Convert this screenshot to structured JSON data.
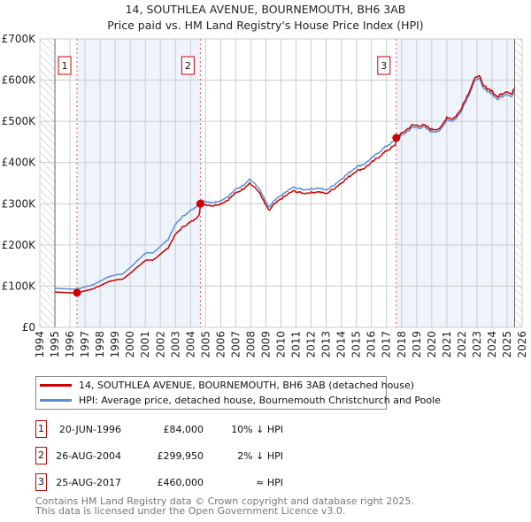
{
  "chart_data": {
    "type": "line",
    "title": "14, SOUTHLEA AVENUE, BOURNEMOUTH, BH6 3AB",
    "subtitle": "Price paid vs. HM Land Registry's House Price Index (HPI)",
    "xlim": [
      1994,
      2026
    ],
    "ylim": [
      0,
      700000
    ],
    "y_ticks": [
      {
        "v": 0,
        "label": "£0"
      },
      {
        "v": 100000,
        "label": "£100K"
      },
      {
        "v": 200000,
        "label": "£200K"
      },
      {
        "v": 300000,
        "label": "£300K"
      },
      {
        "v": 400000,
        "label": "£400K"
      },
      {
        "v": 500000,
        "label": "£500K"
      },
      {
        "v": 600000,
        "label": "£600K"
      },
      {
        "v": 700000,
        "label": "£700K"
      }
    ],
    "x_ticks": [
      "1994",
      "1995",
      "1996",
      "1997",
      "1998",
      "1999",
      "2000",
      "2001",
      "2002",
      "2003",
      "2004",
      "2005",
      "2006",
      "2007",
      "2008",
      "2009",
      "2010",
      "2011",
      "2012",
      "2013",
      "2014",
      "2015",
      "2016",
      "2017",
      "2018",
      "2019",
      "2020",
      "2021",
      "2022",
      "2023",
      "2024",
      "2025",
      "2026"
    ],
    "data_range": [
      1995,
      2025.5
    ],
    "series": [
      {
        "name": "14, SOUTHLEA AVENUE, BOURNEMOUTH, BH6 3AB (detached house)",
        "color": "#cc0000",
        "derived_from_hpi_and_sales": true
      },
      {
        "name": "HPI: Average price, detached house, Bournemouth Christchurch and Poole",
        "color": "#5b8fd4",
        "points": [
          [
            1995,
            95000
          ],
          [
            1996,
            93000
          ],
          [
            1996.47,
            93000
          ],
          [
            1997,
            98000
          ],
          [
            1997.5,
            103000
          ],
          [
            1998,
            112000
          ],
          [
            1998.5,
            122000
          ],
          [
            1999,
            127000
          ],
          [
            1999.5,
            130000
          ],
          [
            2000,
            145000
          ],
          [
            2000.5,
            163000
          ],
          [
            2001,
            180000
          ],
          [
            2001.5,
            180000
          ],
          [
            2002,
            197000
          ],
          [
            2002.5,
            213000
          ],
          [
            2003,
            250000
          ],
          [
            2003.5,
            270000
          ],
          [
            2004,
            283000
          ],
          [
            2004.3,
            290000
          ],
          [
            2004.65,
            308000
          ],
          [
            2005,
            306000
          ],
          [
            2005.5,
            303000
          ],
          [
            2006,
            308000
          ],
          [
            2006.5,
            318000
          ],
          [
            2007,
            335000
          ],
          [
            2007.5,
            345000
          ],
          [
            2007.9,
            360000
          ],
          [
            2008.5,
            340000
          ],
          [
            2009.2,
            290000
          ],
          [
            2009.5,
            305000
          ],
          [
            2010,
            320000
          ],
          [
            2010.8,
            340000
          ],
          [
            2011.5,
            334000
          ],
          [
            2012,
            336000
          ],
          [
            2012.5,
            338000
          ],
          [
            2013,
            333000
          ],
          [
            2013.5,
            345000
          ],
          [
            2014,
            360000
          ],
          [
            2014.5,
            375000
          ],
          [
            2015,
            390000
          ],
          [
            2015.5,
            396000
          ],
          [
            2016,
            410000
          ],
          [
            2016.5,
            425000
          ],
          [
            2017,
            440000
          ],
          [
            2017.65,
            455000
          ],
          [
            2018,
            465000
          ],
          [
            2018.7,
            485000
          ],
          [
            2019.5,
            485000
          ],
          [
            2020,
            475000
          ],
          [
            2020.6,
            478000
          ],
          [
            2021,
            505000
          ],
          [
            2021.4,
            500000
          ],
          [
            2021.8,
            515000
          ],
          [
            2022.3,
            552000
          ],
          [
            2022.8,
            592000
          ],
          [
            2023.1,
            608000
          ],
          [
            2023.4,
            580000
          ],
          [
            2024,
            568000
          ],
          [
            2024.3,
            552000
          ],
          [
            2024.6,
            560000
          ],
          [
            2025,
            568000
          ],
          [
            2025.3,
            558000
          ],
          [
            2025.5,
            575000
          ]
        ]
      }
    ],
    "sales": [
      {
        "id": "1",
        "t": 1996.47,
        "price": 84000,
        "date": "20-JUN-1996",
        "price_label": "£84,000",
        "rel": "10% ↓ HPI"
      },
      {
        "id": "2",
        "t": 2004.65,
        "price": 299950,
        "date": "26-AUG-2004",
        "price_label": "£299,950",
        "rel": "2% ↓ HPI"
      },
      {
        "id": "3",
        "t": 2017.65,
        "price": 460000,
        "date": "25-AUG-2017",
        "price_label": "£460,000",
        "rel": "≈ HPI"
      }
    ],
    "grid": true,
    "legend_placement": "below"
  },
  "legend": {
    "red": "14, SOUTHLEA AVENUE, BOURNEMOUTH, BH6 3AB (detached house)",
    "blue": "HPI: Average price, detached house, Bournemouth Christchurch and Poole"
  },
  "footer": {
    "line1": "Contains HM Land Registry data © Crown copyright and database right 2025.",
    "line2": "This data is licensed under the Open Government Licence v3.0."
  }
}
